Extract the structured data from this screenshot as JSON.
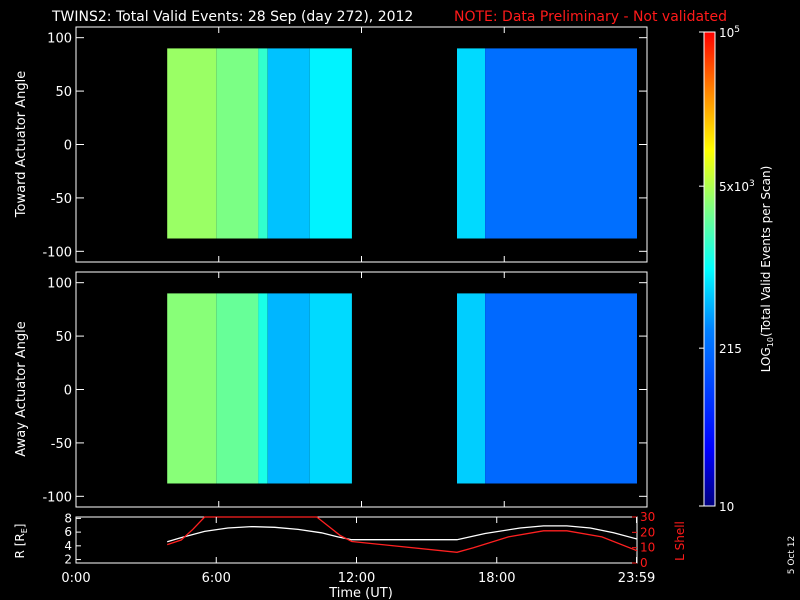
{
  "chart_data": [
    {
      "type": "heatmap",
      "title": "TWINS2: Total Valid Events: 28 Sep (day 272), 2012",
      "note": "NOTE: Data Preliminary - Not validated",
      "ylabel": "Toward Actuator Angle",
      "xlim": [
        0,
        24
      ],
      "ylim": [
        -110,
        110
      ],
      "yticks": [
        100,
        50,
        0,
        -50,
        -100
      ],
      "data_time_ranges": [
        [
          3.9,
          11.8
        ],
        [
          16.3,
          24.0
        ]
      ],
      "data_angle_range": [
        -88,
        90
      ],
      "log10_events_by_time": [
        {
          "range": [
            3.9,
            6.0
          ],
          "value": 3.62
        },
        {
          "range": [
            6.0,
            7.8
          ],
          "value": 3.5
        },
        {
          "range": [
            7.8,
            8.2
          ],
          "value": 3.2
        },
        {
          "range": [
            8.2,
            10.0
          ],
          "value": 2.75
        },
        {
          "range": [
            10.0,
            11.8
          ],
          "value": 2.95
        },
        {
          "range": [
            16.3,
            17.5
          ],
          "value": 2.85
        },
        {
          "range": [
            17.5,
            24.0
          ],
          "value": 2.35
        }
      ]
    },
    {
      "type": "heatmap",
      "ylabel": "Away Actuator Angle",
      "xlim": [
        0,
        24
      ],
      "ylim": [
        -110,
        110
      ],
      "yticks": [
        100,
        50,
        0,
        -50,
        -100
      ],
      "data_time_ranges": [
        [
          3.9,
          11.8
        ],
        [
          16.3,
          24.0
        ]
      ],
      "data_angle_range": [
        -88,
        90
      ],
      "log10_events_by_time": [
        {
          "range": [
            3.9,
            6.0
          ],
          "value": 3.55
        },
        {
          "range": [
            6.0,
            7.8
          ],
          "value": 3.42
        },
        {
          "range": [
            7.8,
            8.2
          ],
          "value": 3.1
        },
        {
          "range": [
            8.2,
            10.0
          ],
          "value": 2.7
        },
        {
          "range": [
            10.0,
            11.8
          ],
          "value": 2.85
        },
        {
          "range": [
            16.3,
            17.5
          ],
          "value": 2.8
        },
        {
          "range": [
            17.5,
            24.0
          ],
          "value": 2.3
        }
      ]
    },
    {
      "type": "line",
      "xlabel": "Time (UT)",
      "xticks": [
        "0:00",
        "6:00",
        "12:00",
        "18:00",
        "23:59"
      ],
      "xtick_hours": [
        0,
        6,
        12,
        18,
        23.98
      ],
      "ylabel_left": "R [R",
      "ylabel_left_subscript": "E",
      "ylabel_left_close": "]",
      "ylim_left": [
        1.5,
        8.2
      ],
      "yticks_left": [
        2,
        4,
        6,
        8
      ],
      "ylabel_right": "L Shell",
      "ylim_right": [
        0,
        30
      ],
      "yticks_right": [
        0,
        10,
        20,
        30
      ],
      "series": [
        {
          "color": "#ffffff",
          "axis": "left",
          "x": [
            3.9,
            4.5,
            5.5,
            6.5,
            7.5,
            8.5,
            9.5,
            10.5,
            11.2,
            11.8,
            16.3,
            17.5,
            19.0,
            20.0,
            21.0,
            22.0,
            23.0,
            24.0
          ],
          "y": [
            4.6,
            5.2,
            6.1,
            6.6,
            6.8,
            6.7,
            6.4,
            5.9,
            5.3,
            4.9,
            4.9,
            5.8,
            6.6,
            6.9,
            6.9,
            6.6,
            5.9,
            5.0
          ]
        },
        {
          "color": "#ff2020",
          "axis": "right",
          "x": [
            3.9,
            4.5,
            5.0,
            5.5,
            10.3,
            10.8,
            11.3,
            11.8,
            16.3,
            17.0,
            18.5,
            20.0,
            21.0,
            22.5,
            24.0
          ],
          "y": [
            12,
            15,
            22,
            32,
            32,
            24,
            18,
            14,
            7,
            10,
            17,
            21,
            21,
            17,
            8
          ]
        }
      ]
    }
  ],
  "colorbar": {
    "label_prefix": "LOG",
    "label_sub": "10",
    "label_rest": "(Total Valid Events per Scan)",
    "log_min": 1.0,
    "log_max": 5.0,
    "ticks": [
      {
        "base": "10",
        "exp": "5",
        "value": 5.0
      },
      {
        "base": "5x10",
        "exp": "3",
        "value": 3.699
      },
      {
        "base": "215",
        "exp": "",
        "value": 2.332
      },
      {
        "base": "10",
        "exp": "",
        "value": 1.0
      }
    ]
  },
  "footer_date": "5 Oct 12",
  "colors": {
    "background": "#000000",
    "axes": "#ffffff",
    "note": "#ff1a1a",
    "lshell": "#ff2020",
    "radius": "#ffffff"
  }
}
